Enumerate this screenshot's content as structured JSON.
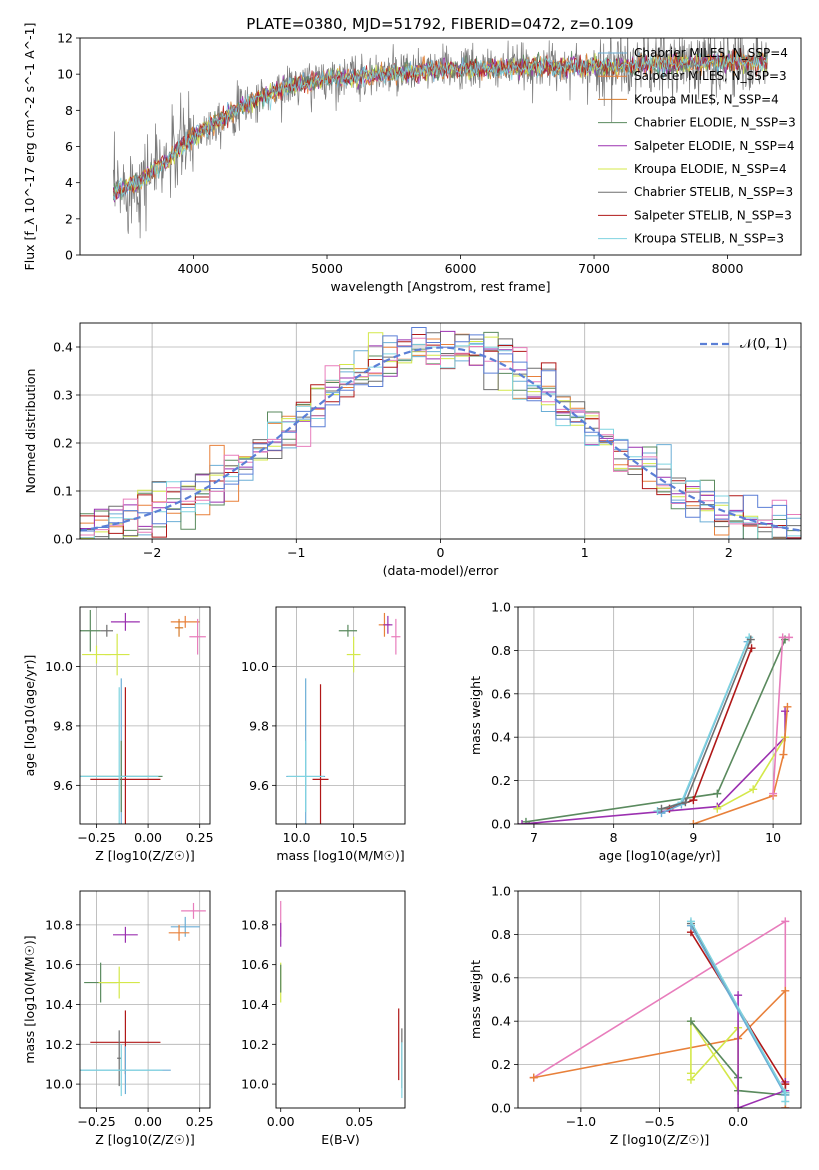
{
  "figure": {
    "title": "PLATE=0380, MJD=51792, FIBERID=0472, z=0.109"
  },
  "colors": {
    "chabrier_miles": "#6baed6",
    "salpeter_miles": "#e8803a",
    "kroupa_miles": "#d67a2a",
    "chabrier_elodie": "#5a8a5e",
    "salpeter_elodie": "#9b30b0",
    "kroupa_elodie": "#d4e84a",
    "chabrier_stelib": "#6e6e6e",
    "salpeter_stelib": "#b01818",
    "kroupa_stelib": "#7fd3e0",
    "pink": "#e87dbc",
    "blue_fit": "#5b7fd6",
    "grey_spec": "#7a7a7a"
  },
  "chart_data": [
    {
      "id": "spectrum",
      "type": "line",
      "xlabel": "wavelength [Angstrom, rest frame]",
      "ylabel": "Flux [f_λ 10^-17 erg cm^-2 s^-1 A^-1]",
      "xlim": [
        3150,
        8550
      ],
      "ylim": [
        0,
        12
      ],
      "xticks": [
        4000,
        5000,
        6000,
        7000,
        8000
      ],
      "yticks": [
        0,
        2,
        4,
        6,
        8,
        10,
        12
      ],
      "grid": false,
      "legend_position": "top-right",
      "legend": [
        {
          "label": "Chabrier MILES, N_SSP=4",
          "color": "#6baed6"
        },
        {
          "label": "Salpeter MILES, N_SSP=3",
          "color": "#e8803a"
        },
        {
          "label": "Kroupa MILES, N_SSP=4",
          "color": "#d67a2a"
        },
        {
          "label": "Chabrier ELODIE, N_SSP=3",
          "color": "#5a8a5e"
        },
        {
          "label": "Salpeter ELODIE, N_SSP=4",
          "color": "#9b30b0"
        },
        {
          "label": "Kroupa ELODIE, N_SSP=4",
          "color": "#d4e84a"
        },
        {
          "label": "Chabrier STELIB, N_SSP=3",
          "color": "#6e6e6e"
        },
        {
          "label": "Salpeter STELIB, N_SSP=3",
          "color": "#b01818"
        },
        {
          "label": "Kroupa STELIB, N_SSP=3",
          "color": "#7fd3e0"
        }
      ],
      "continuum": {
        "x": [
          3400,
          3600,
          3800,
          3950,
          4100,
          4300,
          4500,
          4700,
          5000,
          5300,
          5600,
          5900,
          6200,
          6500,
          6800,
          7100,
          7400,
          7700,
          8000,
          8250
        ],
        "y": [
          3.4,
          4.1,
          5.2,
          6.3,
          7.1,
          7.9,
          8.7,
          9.3,
          9.8,
          9.9,
          10.1,
          10.3,
          10.3,
          10.4,
          10.4,
          10.4,
          10.5,
          10.6,
          10.7,
          10.7
        ]
      }
    },
    {
      "id": "residuals",
      "type": "histogram",
      "xlabel": "(data-model)/error",
      "ylabel": "Normed distribution",
      "xlim": [
        -2.5,
        2.5
      ],
      "ylim": [
        0,
        0.45
      ],
      "xticks": [
        -2,
        -1,
        0,
        1,
        2
      ],
      "yticks": [
        0.0,
        0.1,
        0.2,
        0.3,
        0.4
      ],
      "grid": true,
      "legend_position": "top-right",
      "legend": [
        {
          "label": "𝒩(0, 1)",
          "color": "#5b7fd6",
          "style": "dashed"
        }
      ],
      "bin_width": 0.1
    },
    {
      "id": "age_vs_Z",
      "type": "errorbar",
      "xlabel": "Z [log10(Z/Z☉)]",
      "ylabel": "age  [log10(age/yr)]",
      "xlim": [
        -0.33,
        0.3
      ],
      "ylim": [
        9.47,
        10.2
      ],
      "xticks": [
        -0.25,
        0.0,
        0.25
      ],
      "xticklabels": [
        "−0.25",
        "0.00",
        "0.25"
      ],
      "yticks": [
        9.6,
        9.8,
        10.0
      ],
      "grid": true,
      "points": [
        {
          "x": -0.28,
          "y": 10.12,
          "xerr": 0.05,
          "yerr": 0.07,
          "color": "#5a8a5e"
        },
        {
          "x": -0.2,
          "y": 10.12,
          "xerr": 0.03,
          "yerr": 0.02,
          "color": "#6e6e6e"
        },
        {
          "x": -0.11,
          "y": 10.15,
          "xerr": 0.07,
          "yerr": 0.03,
          "color": "#9b30b0"
        },
        {
          "x": -0.25,
          "y": 10.04,
          "xerr": 0.07,
          "yerr": 0.03,
          "color": "#d4e84a"
        },
        {
          "x": -0.15,
          "y": 10.04,
          "xerr": 0.06,
          "yerr": 0.07,
          "color": "#d4e84a"
        },
        {
          "x": 0.18,
          "y": 10.15,
          "xerr": 0.07,
          "yerr": 0.02,
          "color": "#e8803a"
        },
        {
          "x": 0.15,
          "y": 10.13,
          "xerr": 0.02,
          "yerr": 0.03,
          "color": "#d67a2a"
        },
        {
          "x": 0.24,
          "y": 10.1,
          "xerr": 0.04,
          "yerr": 0.06,
          "color": "#e87dbc"
        },
        {
          "x": -0.13,
          "y": 9.63,
          "xerr": 0.2,
          "yerr": 0.33,
          "color": "#6baed6"
        },
        {
          "x": -0.11,
          "y": 9.62,
          "xerr": 0.17,
          "yerr": 0.31,
          "color": "#b01818"
        },
        {
          "x": -0.13,
          "y": 9.63,
          "xerr": 0.2,
          "yerr": 0.12,
          "color": "#5a8a5e"
        },
        {
          "x": -0.14,
          "y": 9.63,
          "xerr": 0.19,
          "yerr": 0.3,
          "color": "#7fd3e0"
        }
      ]
    },
    {
      "id": "age_vs_mass",
      "type": "errorbar",
      "xlabel": "mass [log10(M/M☉)]",
      "ylabel": "",
      "xlim": [
        9.82,
        10.95
      ],
      "ylim": [
        9.47,
        10.2
      ],
      "xticks": [
        10.0,
        10.5
      ],
      "xticklabels": [
        "10.0",
        "10.5"
      ],
      "yticks": [
        9.6,
        9.8,
        10.0
      ],
      "grid": true,
      "points": [
        {
          "x": 10.45,
          "y": 10.12,
          "xerr": 0.08,
          "yerr": 0.02,
          "color": "#5a8a5e"
        },
        {
          "x": 10.5,
          "y": 10.04,
          "xerr": 0.06,
          "yerr": 0.06,
          "color": "#d4e84a"
        },
        {
          "x": 10.77,
          "y": 10.14,
          "xerr": 0.05,
          "yerr": 0.04,
          "color": "#e8803a"
        },
        {
          "x": 10.8,
          "y": 10.14,
          "xerr": 0.04,
          "yerr": 0.03,
          "color": "#9b30b0"
        },
        {
          "x": 10.87,
          "y": 10.1,
          "xerr": 0.04,
          "yerr": 0.06,
          "color": "#e87dbc"
        },
        {
          "x": 10.08,
          "y": 9.63,
          "xerr": 0.17,
          "yerr": 0.33,
          "color": "#6baed6"
        },
        {
          "x": 10.21,
          "y": 9.62,
          "xerr": 0.07,
          "yerr": 0.32,
          "color": "#b01818"
        },
        {
          "x": 10.08,
          "y": 9.63,
          "xerr": 0.16,
          "yerr": 0.12,
          "color": "#7fd3e0"
        }
      ]
    },
    {
      "id": "massweight_vs_age",
      "type": "line",
      "xlabel": "age  [log10(age/yr)]",
      "ylabel": "mass weight",
      "xlim": [
        6.8,
        10.35
      ],
      "ylim": [
        0,
        1.0
      ],
      "xticks": [
        7,
        8,
        9,
        10
      ],
      "yticks": [
        0.0,
        0.2,
        0.4,
        0.6,
        0.8,
        1.0
      ],
      "grid": true,
      "series": [
        {
          "color": "#5a8a5e",
          "x": [
            6.9,
            9.3,
            10.15
          ],
          "y": [
            0.01,
            0.14,
            0.85
          ]
        },
        {
          "color": "#9b30b0",
          "x": [
            6.85,
            9.3,
            10.15,
            10.15
          ],
          "y": [
            0.0,
            0.08,
            0.4,
            0.52
          ]
        },
        {
          "color": "#d4e84a",
          "x": [
            9.3,
            9.75,
            10.15
          ],
          "y": [
            0.07,
            0.16,
            0.4
          ]
        },
        {
          "color": "#e8803a",
          "x": [
            9.0,
            10.0,
            10.13,
            10.18
          ],
          "y": [
            0.0,
            0.13,
            0.32,
            0.54
          ]
        },
        {
          "color": "#b01818",
          "x": [
            8.7,
            9.0,
            9.73
          ],
          "y": [
            0.07,
            0.11,
            0.81
          ]
        },
        {
          "color": "#6baed6",
          "x": [
            8.6,
            8.85,
            9.68
          ],
          "y": [
            0.05,
            0.09,
            0.84
          ]
        },
        {
          "color": "#7fd3e0",
          "x": [
            8.55,
            8.85,
            9.7
          ],
          "y": [
            0.06,
            0.1,
            0.86
          ]
        },
        {
          "color": "#6e6e6e",
          "x": [
            8.6,
            8.9,
            9.72
          ],
          "y": [
            0.07,
            0.1,
            0.85
          ]
        },
        {
          "color": "#e87dbc",
          "x": [
            10.0,
            10.12,
            10.2
          ],
          "y": [
            0.14,
            0.86,
            0.86
          ]
        }
      ]
    },
    {
      "id": "mass_vs_Z",
      "type": "errorbar",
      "xlabel": "Z [log10(Z/Z☉)]",
      "ylabel": "mass [log10(M/M☉)]",
      "xlim": [
        -0.33,
        0.3
      ],
      "ylim": [
        9.88,
        10.97
      ],
      "xticks": [
        -0.25,
        0.0,
        0.25
      ],
      "xticklabels": [
        "−0.25",
        "0.00",
        "0.25"
      ],
      "yticks": [
        10.0,
        10.2,
        10.4,
        10.6,
        10.8
      ],
      "grid": true,
      "points": [
        {
          "x": -0.11,
          "y": 10.75,
          "xerr": 0.06,
          "yerr": 0.04,
          "color": "#9b30b0"
        },
        {
          "x": 0.22,
          "y": 10.87,
          "xerr": 0.06,
          "yerr": 0.04,
          "color": "#e87dbc"
        },
        {
          "x": 0.18,
          "y": 10.79,
          "xerr": 0.07,
          "yerr": 0.05,
          "color": "#6baed6"
        },
        {
          "x": 0.15,
          "y": 10.76,
          "xerr": 0.05,
          "yerr": 0.04,
          "color": "#e8803a"
        },
        {
          "x": -0.23,
          "y": 10.51,
          "xerr": 0.08,
          "yerr": 0.1,
          "color": "#5a8a5e"
        },
        {
          "x": -0.14,
          "y": 10.51,
          "xerr": 0.1,
          "yerr": 0.08,
          "color": "#d4e84a"
        },
        {
          "x": -0.11,
          "y": 10.21,
          "xerr": 0.17,
          "yerr": 0.16,
          "color": "#b01818"
        },
        {
          "x": -0.14,
          "y": 10.13,
          "xerr": 0.01,
          "yerr": 0.14,
          "color": "#6e6e6e"
        },
        {
          "x": -0.11,
          "y": 10.07,
          "xerr": 0.22,
          "yerr": 0.12,
          "color": "#6baed6"
        },
        {
          "x": -0.13,
          "y": 10.07,
          "xerr": 0.2,
          "yerr": 0.13,
          "color": "#7fd3e0"
        }
      ]
    },
    {
      "id": "mass_vs_ebv",
      "type": "errorbar",
      "xlabel": "E(B-V)",
      "ylabel": "",
      "xlim": [
        -0.003,
        0.079
      ],
      "ylim": [
        9.88,
        10.97
      ],
      "xticks": [
        0.0,
        0.05
      ],
      "xticklabels": [
        "0.00",
        "0.05"
      ],
      "yticks": [
        10.0,
        10.2,
        10.4,
        10.6,
        10.8
      ],
      "grid": false,
      "points": [
        {
          "x": 0.0,
          "y": 10.83,
          "xerr": 0.0,
          "yerr": 0.09,
          "color": "#e87dbc"
        },
        {
          "x": 0.0,
          "y": 10.75,
          "xerr": 0.0,
          "yerr": 0.06,
          "color": "#9b30b0"
        },
        {
          "x": 0.0,
          "y": 10.51,
          "xerr": 0.0,
          "yerr": 0.1,
          "color": "#d4e84a"
        },
        {
          "x": 0.0,
          "y": 10.53,
          "xerr": 0.0,
          "yerr": 0.07,
          "color": "#5a8a5e"
        },
        {
          "x": 0.075,
          "y": 10.2,
          "xerr": 0.0,
          "yerr": 0.18,
          "color": "#b01818"
        },
        {
          "x": 0.077,
          "y": 10.13,
          "xerr": 0.0,
          "yerr": 0.15,
          "color": "#6e6e6e"
        },
        {
          "x": 0.077,
          "y": 10.07,
          "xerr": 0.0,
          "yerr": 0.14,
          "color": "#7fd3e0"
        }
      ]
    },
    {
      "id": "massweight_vs_Z",
      "type": "line",
      "xlabel": "Z [log10(Z/Z☉)]",
      "ylabel": "mass weight",
      "xlim": [
        -1.4,
        0.4
      ],
      "ylim": [
        0,
        1.0
      ],
      "xticks": [
        -1.0,
        -0.5,
        0.0
      ],
      "xticklabels": [
        "−1.0",
        "−0.5",
        "0.0"
      ],
      "yticks": [
        0.0,
        0.2,
        0.4,
        0.6,
        0.8,
        1.0
      ],
      "grid": true,
      "series": [
        {
          "color": "#e87dbc",
          "x": [
            -1.3,
            0.3,
            0.3
          ],
          "y": [
            0.14,
            0.86,
            0.0
          ]
        },
        {
          "color": "#e8803a",
          "x": [
            -1.3,
            0.0,
            0.3,
            0.3
          ],
          "y": [
            0.14,
            0.32,
            0.54,
            0.0
          ]
        },
        {
          "color": "#d4e84a",
          "x": [
            -0.3,
            -0.3,
            0.0,
            0.0,
            -0.3
          ],
          "y": [
            0.16,
            0.4,
            0.08,
            0.37,
            0.13
          ]
        },
        {
          "color": "#5a8a5e",
          "x": [
            -0.3,
            0.0,
            0.0,
            0.3
          ],
          "y": [
            0.4,
            0.14,
            0.08,
            0.06
          ]
        },
        {
          "color": "#9b30b0",
          "x": [
            0.0,
            0.0,
            0.3,
            0.3
          ],
          "y": [
            0.52,
            0.0,
            0.08,
            0.12
          ]
        },
        {
          "color": "#b01818",
          "x": [
            -0.3,
            0.3,
            0.3
          ],
          "y": [
            0.81,
            0.11,
            0.07
          ]
        },
        {
          "color": "#6e6e6e",
          "x": [
            -0.3,
            0.3
          ],
          "y": [
            0.85,
            0.07
          ]
        },
        {
          "color": "#6baed6",
          "x": [
            -0.3,
            0.3
          ],
          "y": [
            0.84,
            0.06
          ]
        },
        {
          "color": "#7fd3e0",
          "x": [
            -0.3,
            0.3,
            0.3
          ],
          "y": [
            0.86,
            0.07,
            0.03
          ]
        }
      ]
    }
  ]
}
